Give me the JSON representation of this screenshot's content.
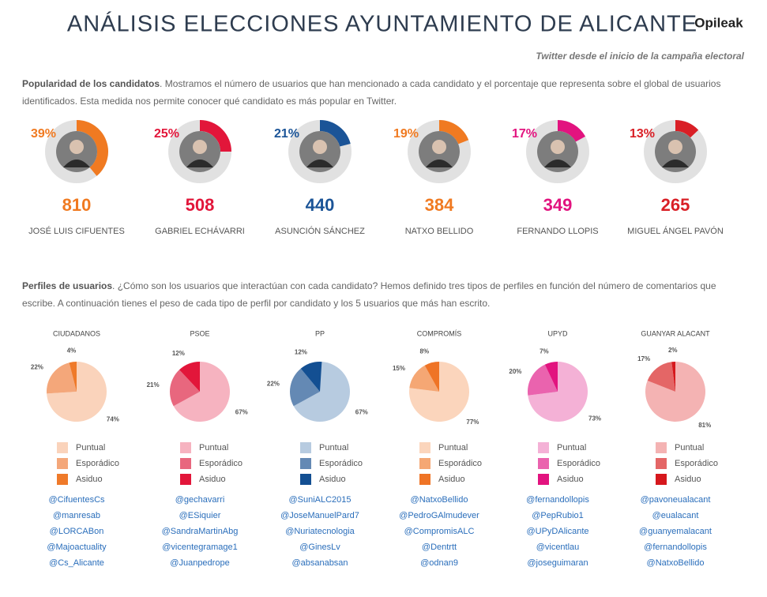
{
  "header": {
    "title": "ANÁLISIS ELECCIONES AYUNTAMIENTO DE ALICANTE",
    "brand": "Opileak",
    "subtitle": "Twitter desde el inicio de la campaña electoral"
  },
  "popularity": {
    "heading": "Popularidad de los candidatos",
    "text": ". Mostramos el número de usuarios que han mencionado a cada candidato y el porcentaje que representa sobre el global de usuarios identificados. Esta medida nos permite conocer qué candidato es más popular en Twitter."
  },
  "profiles": {
    "heading": "Perfiles de usuarios",
    "text": ". ¿Cómo son los usuarios que interactúan con cada candidato? Hemos definido tres tipos de perfiles en función del número de comentarios que escribe. A continuación tienes el peso de cada tipo de perfil por candidato y los 5 usuarios que más han escrito."
  },
  "chart_data": [
    {
      "type": "donut",
      "label": "JOSÉ LUIS CIFUENTES",
      "values": [
        39
      ],
      "value_labels": [
        "39%"
      ],
      "count": 810,
      "color": "#f07a21"
    },
    {
      "type": "donut",
      "label": "GABRIEL ECHÁVARRI",
      "values": [
        25
      ],
      "value_labels": [
        "25%"
      ],
      "count": 508,
      "color": "#e2163a"
    },
    {
      "type": "donut",
      "label": "ASUNCIÓN SÁNCHEZ",
      "values": [
        21
      ],
      "value_labels": [
        "21%"
      ],
      "count": 440,
      "color": "#1b5497"
    },
    {
      "type": "donut",
      "label": "NATXO BELLIDO",
      "values": [
        19
      ],
      "value_labels": [
        "19%"
      ],
      "count": 384,
      "color": "#f07a21"
    },
    {
      "type": "donut",
      "label": "FERNANDO LLOPIS",
      "values": [
        17
      ],
      "value_labels": [
        "17%"
      ],
      "count": 349,
      "color": "#e2137f"
    },
    {
      "type": "donut",
      "label": "MIGUEL ÁNGEL PAVÓN",
      "values": [
        13
      ],
      "value_labels": [
        "13%"
      ],
      "count": 265,
      "color": "#d91f26"
    },
    {
      "type": "pie",
      "title": "CIUDADANOS",
      "categories": [
        "Puntual",
        "Esporádico",
        "Asiduo"
      ],
      "values": [
        74,
        22,
        4
      ],
      "value_labels": [
        "74%",
        "22%",
        "4%"
      ],
      "colors": [
        "#fad3bb",
        "#f4a77a",
        "#ef7a2a"
      ],
      "accounts": [
        "@CifuentesCs",
        "@manresab",
        "@LORCABon",
        "@Majoactuality",
        "@Cs_Alicante"
      ]
    },
    {
      "type": "pie",
      "title": "PSOE",
      "categories": [
        "Puntual",
        "Esporádico",
        "Asiduo"
      ],
      "values": [
        67,
        21,
        12
      ],
      "value_labels": [
        "67%",
        "21%",
        "12%"
      ],
      "colors": [
        "#f6b3c0",
        "#e8677e",
        "#e2163a"
      ],
      "accounts": [
        "@gechavarri",
        "@ESiquier",
        "@SandraMartinAbg",
        "@vicentegramage1",
        "@Juanpedrope"
      ]
    },
    {
      "type": "pie",
      "title": "PP",
      "categories": [
        "Puntual",
        "Esporádico",
        "Asiduo"
      ],
      "values": [
        67,
        22,
        12
      ],
      "value_labels": [
        "67%",
        "22%",
        "12%"
      ],
      "colors": [
        "#b7cbe0",
        "#6489b4",
        "#134f92"
      ],
      "accounts": [
        "@SuniALC2015",
        "@JoseManuelPard7",
        "@Nuriatecnologia",
        "@GinesLv",
        "@absanabsan"
      ]
    },
    {
      "type": "pie",
      "title": "COMPROMÍS",
      "categories": [
        "Puntual",
        "Esporádico",
        "Asiduo"
      ],
      "values": [
        77,
        15,
        8
      ],
      "value_labels": [
        "77%",
        "15%",
        "8%"
      ],
      "colors": [
        "#fbd5bc",
        "#f5a774",
        "#ef7426"
      ],
      "accounts": [
        "@NatxoBellido",
        "@PedroGAlmudever",
        "@CompromisALC",
        "@Dentrtt",
        "@odnan9"
      ]
    },
    {
      "type": "pie",
      "title": "UPYD",
      "categories": [
        "Puntual",
        "Esporádico",
        "Asiduo"
      ],
      "values": [
        73,
        20,
        7
      ],
      "value_labels": [
        "73%",
        "20%",
        "7%"
      ],
      "colors": [
        "#f4b1d6",
        "#ea63ae",
        "#e2137f"
      ],
      "accounts": [
        "@fernandollopis",
        "@PepRubio1",
        "@UPyDAlicante",
        "@vicentlau",
        "@joseguimaran"
      ]
    },
    {
      "type": "pie",
      "title": "GUANYAR ALACANT",
      "categories": [
        "Puntual",
        "Esporádico",
        "Asiduo"
      ],
      "values": [
        81,
        17,
        2
      ],
      "value_labels": [
        "81%",
        "17%",
        "2%"
      ],
      "colors": [
        "#f4b3b3",
        "#e46666",
        "#d6181d"
      ],
      "accounts": [
        "@pavoneualacant",
        "@eualacant",
        "@guanyemalacant",
        "@fernandollopis",
        "@NatxoBellido"
      ]
    }
  ]
}
